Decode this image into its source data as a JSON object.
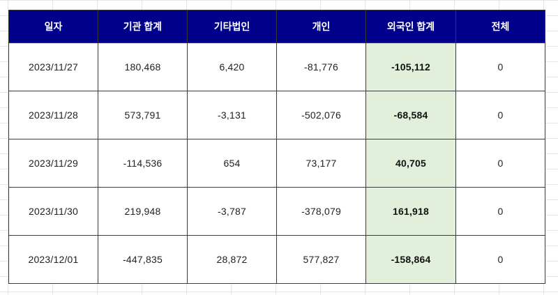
{
  "table": {
    "headers": [
      "일자",
      "기관 합계",
      "기타법인",
      "개인",
      "외국인 합계",
      "전체"
    ],
    "rows": [
      [
        "2023/11/27",
        "180,468",
        "6,420",
        "-81,776",
        "-105,112",
        "0"
      ],
      [
        "2023/11/28",
        "573,791",
        "-3,131",
        "-502,076",
        "-68,584",
        "0"
      ],
      [
        "2023/11/29",
        "-114,536",
        "654",
        "73,177",
        "40,705",
        "0"
      ],
      [
        "2023/11/30",
        "219,948",
        "-3,787",
        "-378,079",
        "161,918",
        "0"
      ],
      [
        "2023/12/01",
        "-447,835",
        "28,872",
        "577,827",
        "-158,864",
        "0"
      ]
    ]
  },
  "colors": {
    "header_bg": "#00008b",
    "header_text": "#ffffff",
    "highlight_col_bg": "#e2efda",
    "border": "#3a3a3a"
  }
}
